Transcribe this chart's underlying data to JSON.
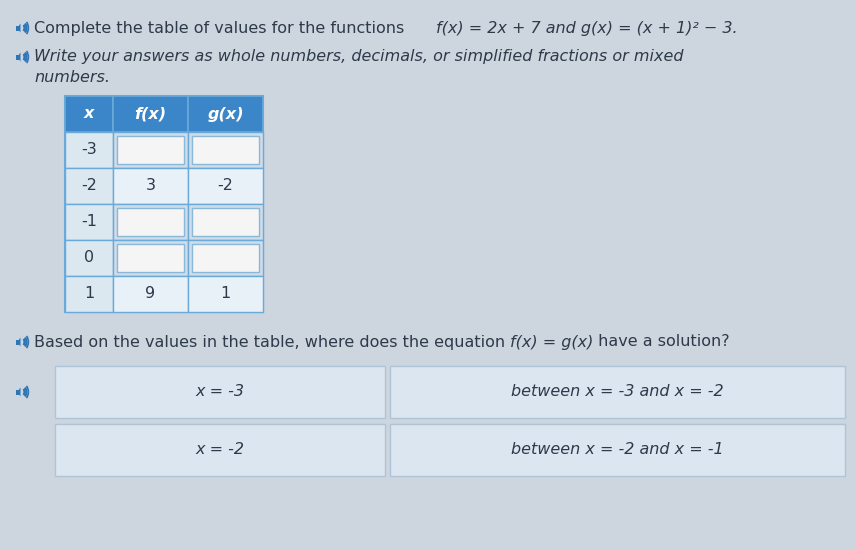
{
  "bg_color": "#cdd5de",
  "title1_plain": "Complete the table of values for the functions ",
  "title1_math": "f(x) = 2x + 7 and g(x) = (x + 1)² − 3.",
  "title2_line1": "Write your answers as whole numbers, decimals, or simplified fractions or mixed",
  "title2_line2": "numbers.",
  "table_header": [
    "x",
    "f(x)",
    "g(x)"
  ],
  "table_header_bg": "#3a86c8",
  "table_header_color": "#ffffff",
  "table_rows": [
    [
      "-3",
      "",
      ""
    ],
    [
      "-2",
      "3",
      "-2"
    ],
    [
      "-1",
      "",
      ""
    ],
    [
      "0",
      "",
      ""
    ],
    [
      "1",
      "9",
      "1"
    ]
  ],
  "row_bg_filled": "#e8f0f8",
  "row_bg_blank_inner": "#ffffff",
  "row_bg_blank_outer": "#d0dce8",
  "row_x_bg": "#dce8f0",
  "table_border_color": "#6aaad8",
  "table_outer_bg": "#c8d8e8",
  "blank_cell_bg": "#f5f5f5",
  "blank_cell_border": "#8ab8d8",
  "question3_plain": "Based on the values in the table, where does the equation ",
  "question3_math": "f(x) = g(x)",
  "question3_end": " have a solution?",
  "answer_options": [
    [
      "x = -3",
      "between x = -3 and x = -2"
    ],
    [
      "x = -2",
      "between x = -2 and x = -1"
    ]
  ],
  "answer_box_bg": "#dce6f0",
  "answer_box_border": "#b0c4d8",
  "speaker_color": "#2e75b6",
  "text_color": "#2d3a4a",
  "text_color_light": "#6a8ab0",
  "font_size_title": 11.5,
  "font_size_table": 11.5,
  "font_size_answer": 11.5
}
